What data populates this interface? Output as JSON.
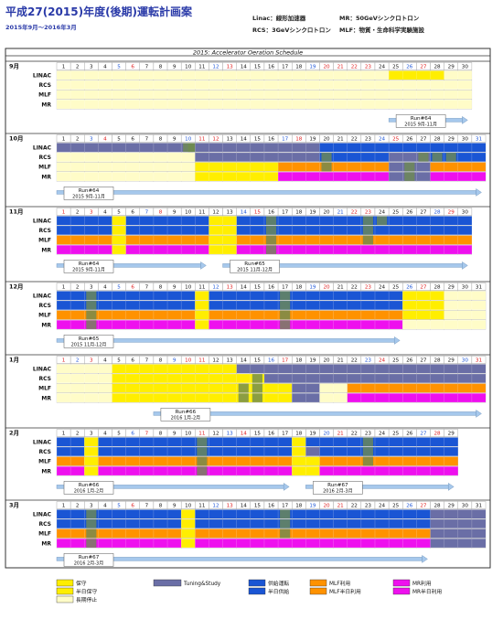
{
  "header": {
    "title": "平成27(2015)年度(後期)運転計画案",
    "period": "2015年9月〜2016年3月",
    "abbr": [
      {
        "text": "Linac：線形加速器"
      },
      {
        "text": "MR：50GeVシンクロトロン"
      },
      {
        "text": "RCS：3GeVシンクロトロン"
      },
      {
        "text": "MLF：物質・生命科学実験施設"
      }
    ]
  },
  "chart_data": {
    "type": "table",
    "title": "2015: Accelerator Oeration Schedule",
    "rows": [
      "LINAC",
      "RCS",
      "MLF",
      "MR"
    ],
    "colors": {
      "maintenance": "#ffee00",
      "half_maintenance": "#ffee00",
      "long_stop": "#fffcc8",
      "tuning": "#6a6ea6",
      "beam_supply": "#1a55d4",
      "half_supply": "#1a55d4",
      "mlf_use": "#ff9200",
      "mlf_half": "#ff9200",
      "mr_use": "#ee10ee",
      "mr_half": "#ee10ee",
      "stripe": "#6e8a52"
    },
    "months": [
      {
        "label": "9月",
        "days": 30,
        "sundays": [
          6,
          13,
          20,
          27
        ],
        "saturdays": [
          5,
          12,
          19,
          26
        ],
        "holidays": [
          21,
          22,
          23
        ],
        "runs": [
          {
            "label": "Run#64",
            "sub": "2015 9月-11月",
            "from": 25,
            "to": 30.7
          }
        ],
        "segments": {
          "LINAC": [
            [
              "long_stop",
              1,
              24
            ],
            [
              "maintenance",
              25,
              28
            ],
            [
              "long_stop",
              29,
              30
            ]
          ],
          "RCS": [
            [
              "long_stop",
              1,
              30
            ]
          ],
          "MLF": [
            [
              "long_stop",
              1,
              30
            ]
          ],
          "MR": [
            [
              "long_stop",
              1,
              30
            ]
          ]
        }
      },
      {
        "label": "10月",
        "days": 31,
        "sundays": [
          4,
          11,
          18,
          25
        ],
        "saturdays": [
          3,
          10,
          17,
          24,
          31
        ],
        "holidays": [
          12
        ],
        "runs": [
          {
            "label": "Run#64",
            "sub": "2015 9月-11月",
            "from": 1,
            "to": 31.7
          }
        ],
        "segments": {
          "LINAC": [
            [
              "tuning",
              1,
              10
            ],
            [
              "stripe",
              10.5,
              10.9
            ],
            [
              "tuning",
              11,
              19
            ],
            [
              "beam_supply",
              20,
              31
            ]
          ],
          "RCS": [
            [
              "long_stop",
              1,
              10
            ],
            [
              "tuning",
              11,
              19
            ],
            [
              "beam_supply",
              20,
              24
            ],
            [
              "tuning",
              25,
              27
            ],
            [
              "beam_supply",
              28,
              31
            ]
          ],
          "MLF": [
            [
              "long_stop",
              1,
              10
            ],
            [
              "maintenance",
              11,
              16
            ],
            [
              "mlf_use",
              17,
              24
            ],
            [
              "tuning",
              25,
              27
            ],
            [
              "mlf_use",
              28,
              31
            ]
          ],
          "MR": [
            [
              "long_stop",
              1,
              10
            ],
            [
              "maintenance",
              11,
              16
            ],
            [
              "mr_use",
              17,
              24
            ],
            [
              "tuning",
              25,
              27
            ],
            [
              "mr_use",
              28,
              31
            ]
          ]
        }
      },
      {
        "label": "11月",
        "days": 30,
        "sundays": [
          1,
          8,
          15,
          22,
          29
        ],
        "saturdays": [
          7,
          14,
          21,
          28
        ],
        "holidays": [
          3,
          23
        ],
        "runs": [
          {
            "label": "Run#64",
            "sub": "2015 9月-11月",
            "from": 1,
            "to": 11.8
          },
          {
            "label": "Run#65",
            "sub": "2015 11月-12月",
            "from": 13,
            "to": 30.7
          }
        ],
        "segments": {
          "LINAC": [
            [
              "beam_supply",
              1,
              4
            ],
            [
              "maintenance",
              5,
              5
            ],
            [
              "beam_supply",
              6,
              11
            ],
            [
              "maintenance",
              12,
              13
            ],
            [
              "beam_supply",
              14,
              30
            ]
          ],
          "RCS": [
            [
              "beam_supply",
              1,
              4
            ],
            [
              "maintenance",
              5,
              5
            ],
            [
              "beam_supply",
              6,
              11
            ],
            [
              "maintenance",
              12,
              13
            ],
            [
              "beam_supply",
              14,
              30
            ]
          ],
          "MLF": [
            [
              "mlf_use",
              1,
              4
            ],
            [
              "maintenance",
              5,
              5
            ],
            [
              "mlf_use",
              6,
              11
            ],
            [
              "maintenance",
              12,
              13
            ],
            [
              "mlf_use",
              14,
              30
            ]
          ],
          "MR": [
            [
              "mr_use",
              1,
              4
            ],
            [
              "maintenance",
              5,
              5
            ],
            [
              "mr_use",
              6,
              11
            ],
            [
              "maintenance",
              12,
              13
            ],
            [
              "mr_use",
              14,
              30
            ]
          ]
        }
      },
      {
        "label": "12月",
        "days": 31,
        "sundays": [
          6,
          13,
          20,
          27
        ],
        "saturdays": [
          5,
          12,
          19,
          26
        ],
        "holidays": [
          23
        ],
        "runs": [
          {
            "label": "Run#65",
            "sub": "2015 11月-12月",
            "from": 1,
            "to": 25.8
          }
        ],
        "segments": {
          "LINAC": [
            [
              "beam_supply",
              1,
              10
            ],
            [
              "maintenance",
              11,
              11
            ],
            [
              "beam_supply",
              12,
              25
            ],
            [
              "maintenance",
              26,
              28
            ],
            [
              "long_stop",
              29,
              31
            ]
          ],
          "RCS": [
            [
              "beam_supply",
              1,
              10
            ],
            [
              "maintenance",
              11,
              11
            ],
            [
              "beam_supply",
              12,
              25
            ],
            [
              "maintenance",
              26,
              28
            ],
            [
              "long_stop",
              29,
              31
            ]
          ],
          "MLF": [
            [
              "mlf_use",
              1,
              10
            ],
            [
              "maintenance",
              11,
              11
            ],
            [
              "mlf_use",
              12,
              25
            ],
            [
              "maintenance",
              26,
              28
            ],
            [
              "long_stop",
              29,
              31
            ]
          ],
          "MR": [
            [
              "mr_use",
              1,
              10
            ],
            [
              "maintenance",
              11,
              11
            ],
            [
              "mr_use",
              12,
              25
            ],
            [
              "long_stop",
              26,
              31
            ]
          ]
        }
      },
      {
        "label": "1月",
        "days": 31,
        "sundays": [
          3,
          10,
          17,
          24,
          31
        ],
        "saturdays": [
          2,
          9,
          16,
          23,
          30
        ],
        "holidays": [
          1,
          11
        ],
        "runs": [
          {
            "label": "Run#66",
            "sub": "2016 1月-2月",
            "from": 8,
            "to": 31.7
          }
        ],
        "segments": {
          "LINAC": [
            [
              "long_stop",
              1,
              4
            ],
            [
              "maintenance",
              5,
              13
            ],
            [
              "tuning",
              14,
              31
            ]
          ],
          "RCS": [
            [
              "long_stop",
              1,
              4
            ],
            [
              "maintenance",
              5,
              15
            ],
            [
              "tuning",
              16,
              31
            ]
          ],
          "MLF": [
            [
              "long_stop",
              1,
              4
            ],
            [
              "maintenance",
              5,
              17
            ],
            [
              "tuning",
              18,
              19
            ],
            [
              "long_stop",
              20,
              21
            ],
            [
              "mlf_use",
              22,
              31
            ]
          ],
          "MR": [
            [
              "long_stop",
              1,
              4
            ],
            [
              "maintenance",
              5,
              17
            ],
            [
              "tuning",
              18,
              19
            ],
            [
              "long_stop",
              20,
              21
            ],
            [
              "mr_use",
              22,
              31
            ]
          ]
        }
      },
      {
        "label": "2月",
        "days": 29,
        "sundays": [
          7,
          14,
          21,
          28
        ],
        "saturdays": [
          6,
          13,
          20,
          27
        ],
        "holidays": [
          11
        ],
        "runs": [
          {
            "label": "Run#66",
            "sub": "2016 1月-2月",
            "from": 1,
            "to": 17.8
          },
          {
            "label": "Run#67",
            "sub": "2016 2月-3月",
            "from": 19,
            "to": 29.7
          }
        ],
        "segments": {
          "LINAC": [
            [
              "beam_supply",
              1,
              2
            ],
            [
              "maintenance",
              3,
              3
            ],
            [
              "beam_supply",
              4,
              17
            ],
            [
              "maintenance",
              18,
              18
            ],
            [
              "beam_supply",
              19,
              29
            ]
          ],
          "RCS": [
            [
              "beam_supply",
              1,
              2
            ],
            [
              "maintenance",
              3,
              3
            ],
            [
              "beam_supply",
              4,
              17
            ],
            [
              "maintenance",
              18,
              18
            ],
            [
              "tuning",
              19,
              19
            ],
            [
              "beam_supply",
              20,
              29
            ]
          ],
          "MLF": [
            [
              "mlf_use",
              1,
              2
            ],
            [
              "maintenance",
              3,
              3
            ],
            [
              "mlf_use",
              4,
              17
            ],
            [
              "maintenance",
              18,
              19
            ],
            [
              "mlf_use",
              20,
              29
            ]
          ],
          "MR": [
            [
              "mr_use",
              1,
              2
            ],
            [
              "maintenance",
              3,
              3
            ],
            [
              "mr_use",
              4,
              17
            ],
            [
              "maintenance",
              18,
              19
            ],
            [
              "mr_use",
              20,
              29
            ]
          ]
        }
      },
      {
        "label": "3月",
        "days": 31,
        "sundays": [
          6,
          13,
          20,
          27
        ],
        "saturdays": [
          5,
          12,
          19,
          26
        ],
        "holidays": [
          21
        ],
        "runs": [
          {
            "label": "Run#67",
            "sub": "2016 2月-3月",
            "from": 1,
            "to": 27.8
          }
        ],
        "segments": {
          "LINAC": [
            [
              "beam_supply",
              1,
              9
            ],
            [
              "maintenance",
              10,
              10
            ],
            [
              "beam_supply",
              11,
              27
            ],
            [
              "tuning",
              28,
              31
            ]
          ],
          "RCS": [
            [
              "beam_supply",
              1,
              9
            ],
            [
              "maintenance",
              10,
              10
            ],
            [
              "beam_supply",
              11,
              27
            ],
            [
              "tuning",
              28,
              31
            ]
          ],
          "MLF": [
            [
              "mlf_use",
              1,
              9
            ],
            [
              "maintenance",
              10,
              10
            ],
            [
              "mlf_use",
              11,
              27
            ],
            [
              "tuning",
              28,
              31
            ]
          ],
          "MR": [
            [
              "mr_use",
              1,
              9
            ],
            [
              "maintenance",
              10,
              10
            ],
            [
              "mr_use",
              11,
              27
            ],
            [
              "tuning",
              28,
              31
            ]
          ]
        }
      }
    ],
    "stripes": {
      "9月": [],
      "10月": [
        [
          0,
          10
        ],
        [
          1,
          20
        ],
        [
          1,
          27
        ],
        [
          1,
          28
        ],
        [
          1,
          29
        ],
        [
          2,
          20
        ],
        [
          2,
          26
        ],
        [
          3,
          26
        ]
      ],
      "11月": [
        [
          0,
          16
        ],
        [
          0,
          23
        ],
        [
          0,
          24
        ],
        [
          1,
          16
        ],
        [
          1,
          23
        ],
        [
          2,
          16
        ],
        [
          2,
          23
        ],
        [
          3,
          16
        ]
      ],
      "12月": [
        [
          0,
          3
        ],
        [
          0,
          17
        ],
        [
          1,
          3
        ],
        [
          1,
          17
        ],
        [
          2,
          3
        ],
        [
          2,
          17
        ],
        [
          3,
          3
        ],
        [
          3,
          17
        ]
      ],
      "1月": [
        [
          1,
          15
        ],
        [
          2,
          14
        ],
        [
          2,
          15
        ],
        [
          3,
          14
        ],
        [
          3,
          15
        ]
      ],
      "2月": [
        [
          0,
          11
        ],
        [
          0,
          23
        ],
        [
          1,
          11
        ],
        [
          1,
          23
        ],
        [
          2,
          11
        ],
        [
          2,
          23
        ],
        [
          3,
          11
        ]
      ],
      "3月": [
        [
          0,
          3
        ],
        [
          0,
          17
        ],
        [
          1,
          3
        ],
        [
          1,
          17
        ],
        [
          2,
          3
        ],
        [
          2,
          17
        ],
        [
          3,
          3
        ]
      ]
    },
    "legend": [
      {
        "key": "maintenance",
        "label": "保守"
      },
      {
        "key": "half_maintenance",
        "label": "半日保守"
      },
      {
        "key": "long_stop",
        "label": "長期停止"
      },
      {
        "key": "tuning",
        "label": "Tuning&Study"
      },
      {
        "key": "beam_supply",
        "label": "供給運転"
      },
      {
        "key": "half_supply",
        "label": "半日供給"
      },
      {
        "key": "mlf_use",
        "label": "MLF利用"
      },
      {
        "key": "mlf_half",
        "label": "MLF半日利用"
      },
      {
        "key": "mr_use",
        "label": "MR利用"
      },
      {
        "key": "mr_half",
        "label": "MR半日利用"
      }
    ]
  }
}
